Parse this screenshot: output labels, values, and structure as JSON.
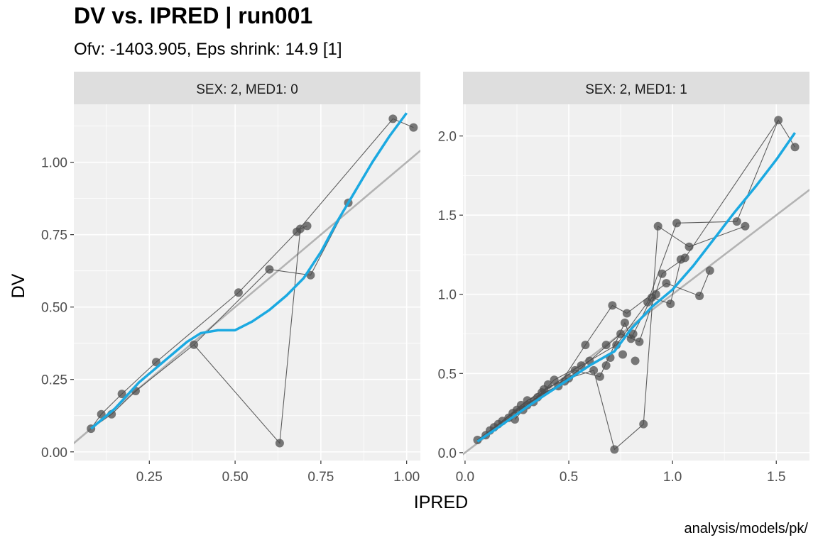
{
  "title": "DV vs. IPRED | run001",
  "subtitle": "Ofv: -1403.905, Eps shrink: 14.9 [1]",
  "caption": "analysis/models/pk/",
  "colors": {
    "panel_bg": "#f0f0f0",
    "grid": "#ffffff",
    "strip_bg": "#dedede",
    "points": "#4d4d4d",
    "identity": "#b3b3b3",
    "smooth": "#1ba9e1"
  },
  "chart_data": {
    "type": "scatter",
    "xlabel": "IPRED",
    "ylabel": "DV",
    "grid": true,
    "panels": [
      {
        "strip": "SEX: 2, MED1: 0",
        "xlim": [
          0.03,
          1.04
        ],
        "ylim": [
          -0.03,
          1.2
        ],
        "xticks": [
          0.25,
          0.5,
          0.75,
          1.0
        ],
        "xtick_labels": [
          "0.25",
          "0.50",
          "0.75",
          "1.00"
        ],
        "yticks": [
          0.0,
          0.25,
          0.5,
          0.75,
          1.0
        ],
        "ytick_labels": [
          "0.00",
          "0.25",
          "0.50",
          "0.75",
          "1.00"
        ],
        "points": [
          [
            0.08,
            0.08
          ],
          [
            0.11,
            0.13
          ],
          [
            0.14,
            0.13
          ],
          [
            0.17,
            0.2
          ],
          [
            0.21,
            0.21
          ],
          [
            0.27,
            0.31
          ],
          [
            0.38,
            0.37
          ],
          [
            0.51,
            0.55
          ],
          [
            0.6,
            0.63
          ],
          [
            0.63,
            0.03
          ],
          [
            0.68,
            0.76
          ],
          [
            0.69,
            0.77
          ],
          [
            0.71,
            0.78
          ],
          [
            0.72,
            0.61
          ],
          [
            0.83,
            0.86
          ],
          [
            0.96,
            1.15
          ],
          [
            1.02,
            1.12
          ]
        ],
        "lines": [
          [
            [
              0.08,
              0.08
            ],
            [
              0.11,
              0.13
            ],
            [
              0.17,
              0.2
            ],
            [
              0.27,
              0.31
            ],
            [
              0.51,
              0.55
            ],
            [
              0.68,
              0.76
            ],
            [
              0.96,
              1.15
            ],
            [
              1.02,
              1.12
            ]
          ],
          [
            [
              0.08,
              0.08
            ],
            [
              0.14,
              0.13
            ],
            [
              0.21,
              0.21
            ],
            [
              0.38,
              0.37
            ],
            [
              0.63,
              0.03
            ],
            [
              0.69,
              0.77
            ],
            [
              0.71,
              0.78
            ]
          ],
          [
            [
              0.38,
              0.37
            ],
            [
              0.6,
              0.63
            ],
            [
              0.72,
              0.61
            ],
            [
              0.83,
              0.86
            ]
          ]
        ],
        "smooth": [
          [
            0.08,
            0.08
          ],
          [
            0.15,
            0.15
          ],
          [
            0.22,
            0.24
          ],
          [
            0.3,
            0.32
          ],
          [
            0.36,
            0.38
          ],
          [
            0.4,
            0.41
          ],
          [
            0.45,
            0.42
          ],
          [
            0.5,
            0.42
          ],
          [
            0.55,
            0.45
          ],
          [
            0.6,
            0.49
          ],
          [
            0.65,
            0.54
          ],
          [
            0.7,
            0.6
          ],
          [
            0.75,
            0.69
          ],
          [
            0.8,
            0.8
          ],
          [
            0.85,
            0.9
          ],
          [
            0.9,
            1.0
          ],
          [
            0.95,
            1.09
          ],
          [
            1.0,
            1.17
          ]
        ]
      },
      {
        "strip": "SEX: 2, MED1: 1",
        "xlim": [
          -0.01,
          1.66
        ],
        "ylim": [
          -0.05,
          2.2
        ],
        "xticks": [
          0.0,
          0.5,
          1.0,
          1.5
        ],
        "xtick_labels": [
          "0.0",
          "0.5",
          "1.0",
          "1.5"
        ],
        "yticks": [
          0.0,
          0.5,
          1.0,
          1.5,
          2.0
        ],
        "ytick_labels": [
          "0.0",
          "0.5",
          "1.0",
          "1.5",
          "2.0"
        ],
        "points": [
          [
            0.06,
            0.08
          ],
          [
            0.1,
            0.11
          ],
          [
            0.12,
            0.14
          ],
          [
            0.14,
            0.16
          ],
          [
            0.16,
            0.18
          ],
          [
            0.18,
            0.2
          ],
          [
            0.21,
            0.22
          ],
          [
            0.23,
            0.25
          ],
          [
            0.25,
            0.27
          ],
          [
            0.27,
            0.3
          ],
          [
            0.3,
            0.33
          ],
          [
            0.33,
            0.32
          ],
          [
            0.35,
            0.35
          ],
          [
            0.38,
            0.4
          ],
          [
            0.4,
            0.43
          ],
          [
            0.43,
            0.46
          ],
          [
            0.45,
            0.42
          ],
          [
            0.48,
            0.45
          ],
          [
            0.5,
            0.47
          ],
          [
            0.53,
            0.52
          ],
          [
            0.56,
            0.55
          ],
          [
            0.58,
            0.68
          ],
          [
            0.6,
            0.58
          ],
          [
            0.62,
            0.52
          ],
          [
            0.65,
            0.48
          ],
          [
            0.68,
            0.55
          ],
          [
            0.7,
            0.6
          ],
          [
            0.72,
            0.02
          ],
          [
            0.73,
            0.68
          ],
          [
            0.75,
            0.75
          ],
          [
            0.77,
            0.82
          ],
          [
            0.78,
            0.88
          ],
          [
            0.8,
            0.72
          ],
          [
            0.82,
            0.58
          ],
          [
            0.84,
            0.7
          ],
          [
            0.86,
            0.18
          ],
          [
            0.88,
            0.95
          ],
          [
            0.9,
            0.98
          ],
          [
            0.92,
            1.0
          ],
          [
            0.93,
            1.43
          ],
          [
            0.95,
            1.13
          ],
          [
            0.97,
            1.07
          ],
          [
            0.99,
            0.94
          ],
          [
            1.02,
            1.45
          ],
          [
            1.04,
            1.22
          ],
          [
            1.06,
            1.23
          ],
          [
            1.08,
            1.3
          ],
          [
            1.13,
            0.99
          ],
          [
            1.18,
            1.15
          ],
          [
            1.31,
            1.46
          ],
          [
            1.35,
            1.43
          ],
          [
            1.51,
            2.1
          ],
          [
            1.59,
            1.93
          ],
          [
            0.71,
            0.93
          ],
          [
            0.68,
            0.68
          ],
          [
            0.76,
            0.62
          ],
          [
            0.81,
            0.75
          ],
          [
            0.3,
            0.3
          ],
          [
            0.37,
            0.38
          ],
          [
            0.24,
            0.21
          ],
          [
            0.28,
            0.27
          ]
        ],
        "lines": [
          [
            [
              0.06,
              0.08
            ],
            [
              0.14,
              0.16
            ],
            [
              0.23,
              0.25
            ],
            [
              0.33,
              0.32
            ],
            [
              0.43,
              0.46
            ],
            [
              0.56,
              0.55
            ],
            [
              0.73,
              0.68
            ],
            [
              0.88,
              0.95
            ],
            [
              1.02,
              1.45
            ],
            [
              1.31,
              1.46
            ],
            [
              1.51,
              2.1
            ],
            [
              1.59,
              1.93
            ]
          ],
          [
            [
              0.1,
              0.11
            ],
            [
              0.18,
              0.2
            ],
            [
              0.27,
              0.3
            ],
            [
              0.38,
              0.4
            ],
            [
              0.5,
              0.47
            ],
            [
              0.62,
              0.52
            ],
            [
              0.72,
              0.02
            ],
            [
              0.86,
              0.18
            ],
            [
              0.93,
              1.43
            ],
            [
              1.08,
              1.3
            ],
            [
              1.35,
              1.43
            ]
          ],
          [
            [
              0.12,
              0.14
            ],
            [
              0.21,
              0.22
            ],
            [
              0.3,
              0.33
            ],
            [
              0.45,
              0.42
            ],
            [
              0.58,
              0.68
            ],
            [
              0.71,
              0.93
            ],
            [
              0.78,
              0.88
            ],
            [
              0.97,
              1.07
            ],
            [
              1.13,
              0.99
            ],
            [
              1.18,
              1.15
            ]
          ],
          [
            [
              0.16,
              0.18
            ],
            [
              0.25,
              0.27
            ],
            [
              0.35,
              0.35
            ],
            [
              0.48,
              0.45
            ],
            [
              0.6,
              0.58
            ],
            [
              0.75,
              0.75
            ],
            [
              0.84,
              0.7
            ],
            [
              0.95,
              1.13
            ],
            [
              1.06,
              1.23
            ],
            [
              1.51,
              2.1
            ]
          ],
          [
            [
              0.24,
              0.21
            ],
            [
              0.28,
              0.27
            ],
            [
              0.37,
              0.38
            ],
            [
              0.53,
              0.52
            ],
            [
              0.65,
              0.48
            ],
            [
              0.77,
              0.82
            ],
            [
              0.8,
              0.72
            ],
            [
              0.9,
              0.98
            ],
            [
              0.99,
              0.94
            ],
            [
              1.04,
              1.22
            ]
          ]
        ],
        "smooth": [
          [
            0.06,
            0.07
          ],
          [
            0.15,
            0.15
          ],
          [
            0.3,
            0.29
          ],
          [
            0.45,
            0.42
          ],
          [
            0.6,
            0.55
          ],
          [
            0.72,
            0.64
          ],
          [
            0.8,
            0.78
          ],
          [
            0.9,
            0.92
          ],
          [
            1.0,
            1.03
          ],
          [
            1.1,
            1.18
          ],
          [
            1.2,
            1.35
          ],
          [
            1.3,
            1.52
          ],
          [
            1.4,
            1.68
          ],
          [
            1.5,
            1.85
          ],
          [
            1.59,
            2.02
          ]
        ]
      }
    ]
  }
}
